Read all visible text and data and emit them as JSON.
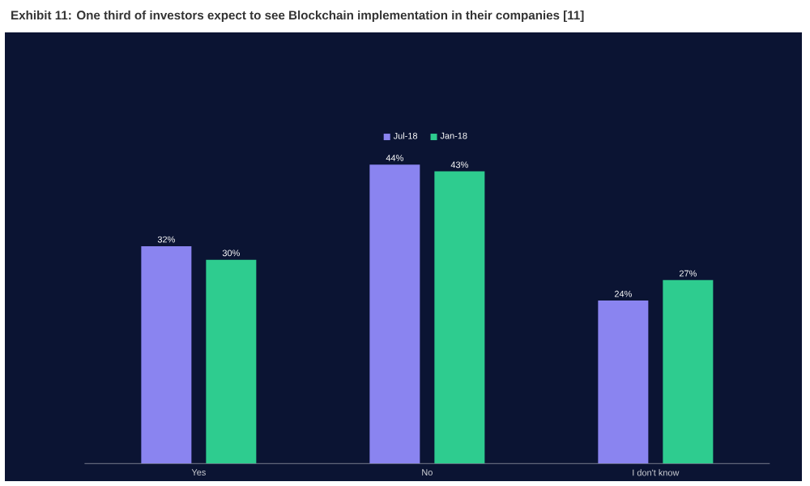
{
  "chart_data": {
    "type": "bar",
    "title": "Exhibit 11: One third of investors expect to see Blockchain implementation in their companies [11]",
    "categories": [
      "Yes",
      "No",
      "I don't know"
    ],
    "legend": "top",
    "series": [
      {
        "name": "Jul-18",
        "color": "#8a84f0",
        "values": [
          32,
          44,
          24
        ],
        "value_labels": [
          "32%",
          "44%",
          "24%"
        ]
      },
      {
        "name": "Jan-18",
        "color": "#2ecc8f",
        "values": [
          30,
          43,
          27
        ],
        "value_labels": [
          "30%",
          "43%",
          "27%"
        ]
      }
    ]
  }
}
